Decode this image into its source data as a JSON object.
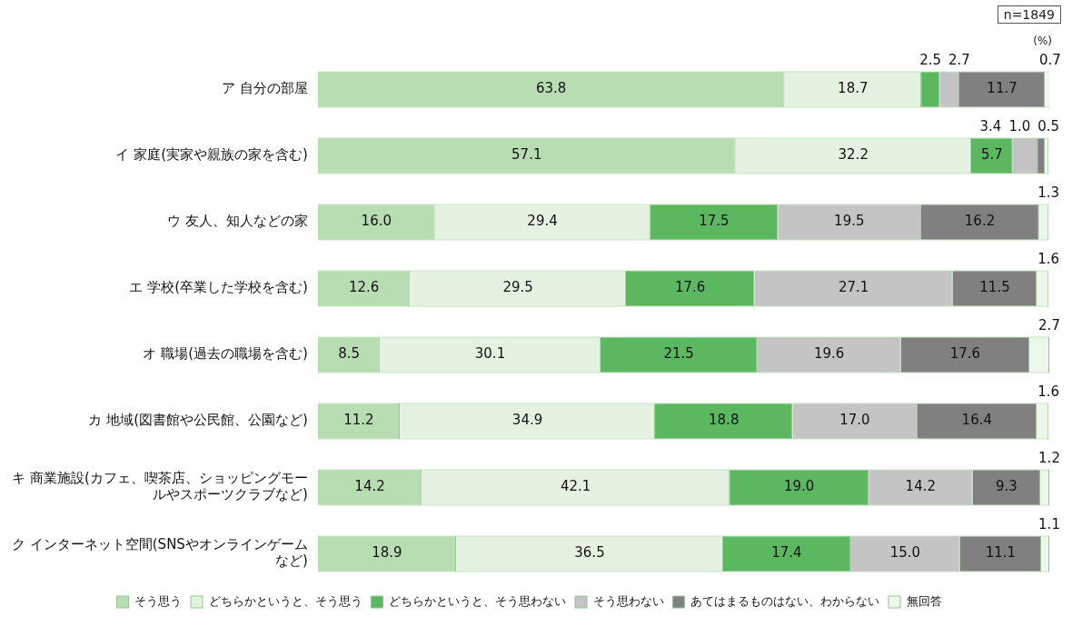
{
  "chart_data": {
    "type": "bar",
    "orientation": "horizontal",
    "stacked": true,
    "xlim": [
      0,
      100
    ],
    "tick_labels": "y",
    "legend": "bottom",
    "categories": [
      "ア 自分の部屋",
      "イ 家庭(実家や親族の家を含む)",
      "ウ 友人、知人などの家",
      "エ 学校(卒業した学校を含む)",
      "オ 職場(過去の職場を含む)",
      "カ 地域(図書館や公民館、公園など)",
      "キ 商業施設(カフェ、喫茶店、ショッピングモールやスポーツクラブなど)",
      "ク インターネット空間(SNSやオンラインゲームなど)"
    ],
    "series": [
      {
        "name": "そう思う",
        "color": "#b9ddb2",
        "values": [
          63.8,
          57.1,
          16.0,
          12.6,
          8.5,
          11.2,
          14.2,
          18.9
        ],
        "value_labels": [
          "63.8",
          "57.1",
          "16.0",
          "12.6",
          "8.5",
          "11.2",
          "14.2",
          "18.9"
        ]
      },
      {
        "name": "どちらかというと、そう思う",
        "color": "#e5f2e1",
        "values": [
          18.7,
          32.2,
          29.4,
          29.5,
          30.1,
          34.9,
          42.1,
          36.5
        ],
        "value_labels": [
          "18.7",
          "32.2",
          "29.4",
          "29.5",
          "30.1",
          "34.9",
          "42.1",
          "36.5"
        ]
      },
      {
        "name": "どちらかというと、そう思わない",
        "color": "#5cb860",
        "values": [
          2.5,
          5.7,
          17.5,
          17.6,
          21.5,
          18.8,
          19.0,
          17.4
        ],
        "value_labels": [
          "2.5",
          "5.7",
          "17.5",
          "17.6",
          "21.5",
          "18.8",
          "19.0",
          "17.4"
        ]
      },
      {
        "name": "そう思わない",
        "color": "#c4c4c4",
        "values": [
          2.7,
          3.4,
          19.5,
          27.1,
          19.6,
          17.0,
          14.2,
          15.0
        ],
        "value_labels": [
          "2.7",
          "3.4",
          "19.5",
          "27.1",
          "19.6",
          "17.0",
          "14.2",
          "15.0"
        ]
      },
      {
        "name": "あてはまるものはない、わからない",
        "color": "#808080",
        "values": [
          11.7,
          1.0,
          16.2,
          11.5,
          17.6,
          16.4,
          9.3,
          11.1
        ],
        "value_labels": [
          "11.7",
          "1.0",
          "16.2",
          "11.5",
          "17.6",
          "16.4",
          "9.3",
          "11.1"
        ]
      },
      {
        "name": "無回答",
        "color": "#eef7ec",
        "values": [
          0.7,
          0.5,
          1.3,
          1.6,
          2.7,
          1.6,
          1.2,
          1.1
        ],
        "value_labels": [
          "0.7",
          "0.5",
          "1.3",
          "1.6",
          "2.7",
          "1.6",
          "1.2",
          "1.1"
        ]
      }
    ],
    "annotations": [
      "n=1849",
      "(%)"
    ]
  }
}
